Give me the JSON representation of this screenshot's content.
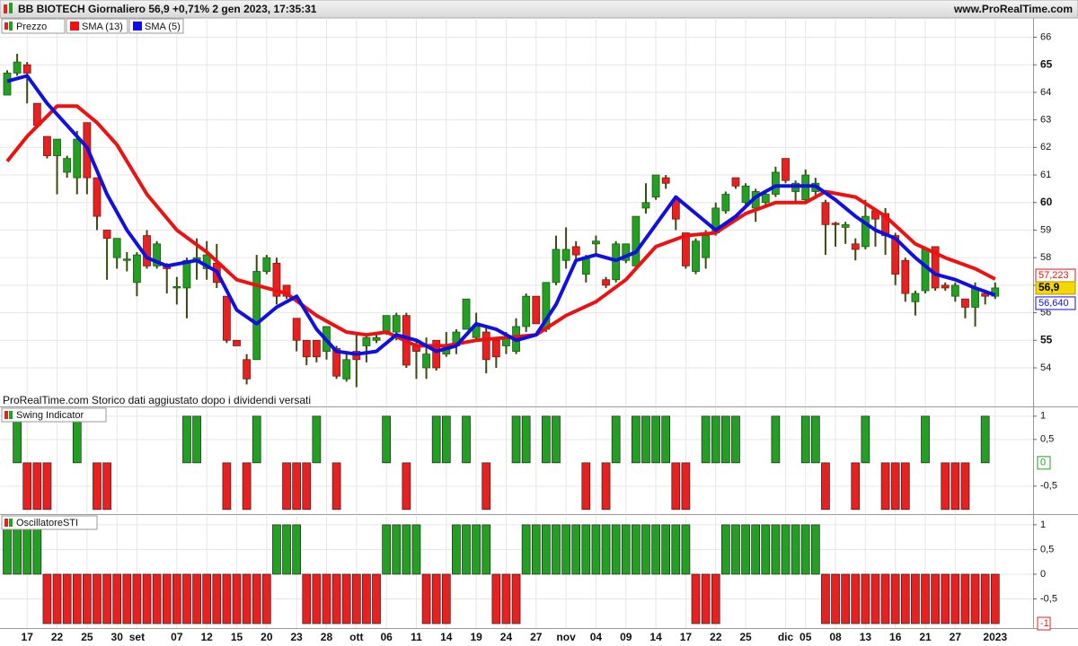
{
  "header": {
    "title": "BB BIOTECH Giornaliero 56,9 +0,71% 2 gen 2023, 17:35:31",
    "site": "www.ProRealTime.com"
  },
  "chart_data": [
    {
      "type": "candlestick",
      "title": "Prezzo",
      "up_color": "#23a023",
      "down_color": "#e82020",
      "note": "ProRealTime.com Storico dati aggiustato dopo i dividendi versati",
      "last_label": "56,9",
      "ylim": [
        52.6,
        66.7
      ],
      "yticks": [
        54,
        55,
        56,
        57,
        58,
        59,
        60,
        61,
        62,
        63,
        64,
        65,
        66
      ],
      "grid": true,
      "candles": [
        [
          63.9,
          64.8,
          63.9,
          64.7
        ],
        [
          64.7,
          65.4,
          64.6,
          65.1
        ],
        [
          65.0,
          65.1,
          63.6,
          64.7
        ],
        [
          63.6,
          63.6,
          62.8,
          62.8
        ],
        [
          62.4,
          62.4,
          61.6,
          61.7
        ],
        [
          61.7,
          62.3,
          60.3,
          62.3
        ],
        [
          61.1,
          61.7,
          60.9,
          61.6
        ],
        [
          60.9,
          62.6,
          60.3,
          62.3
        ],
        [
          62.9,
          62.9,
          60.3,
          60.9
        ],
        [
          60.9,
          60.9,
          59.0,
          59.5
        ],
        [
          59.0,
          59.0,
          57.2,
          58.7
        ],
        [
          58.0,
          58.7,
          57.6,
          58.7
        ],
        [
          57.9,
          58.2,
          57.5,
          57.95
        ],
        [
          57.1,
          58.2,
          56.6,
          58.1
        ],
        [
          58.8,
          59.0,
          57.6,
          57.7
        ],
        [
          57.7,
          58.6,
          57.6,
          58.5
        ],
        [
          57.7,
          57.8,
          56.7,
          57.6
        ],
        [
          56.9,
          57.3,
          56.3,
          56.95
        ],
        [
          56.9,
          58.0,
          55.8,
          57.9
        ],
        [
          57.9,
          58.7,
          57.2,
          58.0
        ],
        [
          57.6,
          58.6,
          57.2,
          58.1
        ],
        [
          57.8,
          58.5,
          56.9,
          57.1
        ],
        [
          56.6,
          56.6,
          54.9,
          55.0
        ],
        [
          55.0,
          55.0,
          54.8,
          54.8
        ],
        [
          54.3,
          54.5,
          53.4,
          53.6
        ],
        [
          54.3,
          58.1,
          54.3,
          57.5
        ],
        [
          57.5,
          58.1,
          57.4,
          58.0
        ],
        [
          57.8,
          58.0,
          56.3,
          56.6
        ],
        [
          57.0,
          57.0,
          56.5,
          56.6
        ],
        [
          55.8,
          55.8,
          54.6,
          55.0
        ],
        [
          55.0,
          55.0,
          54.1,
          54.4
        ],
        [
          55.0,
          55.0,
          54.2,
          54.4
        ],
        [
          54.6,
          55.5,
          54.3,
          55.5
        ],
        [
          54.7,
          54.8,
          53.6,
          53.7
        ],
        [
          53.6,
          54.6,
          53.5,
          54.3
        ],
        [
          54.6,
          55.2,
          53.3,
          54.3
        ],
        [
          54.8,
          55.2,
          54.2,
          55.1
        ],
        [
          55.0,
          55.3,
          54.9,
          55.1
        ],
        [
          55.3,
          55.9,
          55.2,
          55.9
        ],
        [
          55.3,
          56.0,
          55.0,
          55.9
        ],
        [
          55.9,
          56.0,
          54.0,
          54.1
        ],
        [
          54.8,
          55.0,
          53.6,
          54.6
        ],
        [
          54.0,
          55.1,
          53.6,
          54.5
        ],
        [
          55.0,
          55.0,
          53.9,
          54.0
        ],
        [
          54.5,
          55.3,
          54.4,
          54.7
        ],
        [
          54.8,
          55.4,
          54.5,
          55.3
        ],
        [
          55.4,
          56.5,
          55.4,
          56.5
        ],
        [
          55.1,
          56.0,
          55.0,
          55.5
        ],
        [
          55.3,
          55.5,
          53.8,
          54.3
        ],
        [
          55.0,
          55.0,
          54.0,
          54.4
        ],
        [
          54.8,
          55.3,
          54.5,
          55.1
        ],
        [
          54.6,
          55.8,
          54.5,
          55.5
        ],
        [
          55.5,
          56.7,
          55.3,
          56.6
        ],
        [
          56.6,
          56.6,
          55.6,
          55.6
        ],
        [
          55.4,
          57.1,
          55.3,
          57.1
        ],
        [
          57.1,
          58.8,
          57.0,
          58.3
        ],
        [
          57.9,
          59.1,
          57.6,
          58.3
        ],
        [
          58.4,
          58.6,
          57.9,
          58.1
        ],
        [
          57.4,
          58.1,
          57.1,
          58.0
        ],
        [
          58.5,
          58.8,
          58.1,
          58.6
        ],
        [
          57.2,
          57.3,
          56.9,
          57.0
        ],
        [
          57.2,
          58.6,
          57.1,
          58.5
        ],
        [
          57.9,
          58.5,
          57.8,
          58.5
        ],
        [
          57.7,
          59.5,
          57.6,
          59.5
        ],
        [
          59.8,
          60.7,
          59.6,
          60.0
        ],
        [
          60.2,
          61.0,
          60.1,
          61.0
        ],
        [
          60.9,
          61.0,
          60.5,
          60.7
        ],
        [
          60.1,
          60.2,
          59.0,
          59.4
        ],
        [
          58.9,
          58.9,
          57.6,
          57.7
        ],
        [
          57.5,
          58.7,
          57.4,
          58.6
        ],
        [
          58.0,
          59.0,
          57.6,
          58.8
        ],
        [
          58.9,
          60.0,
          58.8,
          59.8
        ],
        [
          59.7,
          60.4,
          59.6,
          60.3
        ],
        [
          60.9,
          60.9,
          60.5,
          60.6
        ],
        [
          60.0,
          60.7,
          59.9,
          60.6
        ],
        [
          59.8,
          60.5,
          59.3,
          60.4
        ],
        [
          60.0,
          60.4,
          59.9,
          60.3
        ],
        [
          60.3,
          61.3,
          60.2,
          61.1
        ],
        [
          61.6,
          61.6,
          60.7,
          60.8
        ],
        [
          60.4,
          60.8,
          60.0,
          60.7
        ],
        [
          60.1,
          61.2,
          60.0,
          61.0
        ],
        [
          60.4,
          60.9,
          60.2,
          60.7
        ],
        [
          60.0,
          60.1,
          58.1,
          59.2
        ],
        [
          59.25,
          59.3,
          58.4,
          59.2
        ],
        [
          59.1,
          59.3,
          58.5,
          59.2
        ],
        [
          58.5,
          58.7,
          57.9,
          58.3
        ],
        [
          58.4,
          60.1,
          58.3,
          59.5
        ],
        [
          59.7,
          59.7,
          58.4,
          59.4
        ],
        [
          59.6,
          59.8,
          58.1,
          58.8
        ],
        [
          58.8,
          58.9,
          57.0,
          57.4
        ],
        [
          57.9,
          58.0,
          56.4,
          56.7
        ],
        [
          56.4,
          56.8,
          55.9,
          56.7
        ],
        [
          56.8,
          58.4,
          56.7,
          58.3
        ],
        [
          58.4,
          58.4,
          56.8,
          56.9
        ],
        [
          57.0,
          57.1,
          56.8,
          56.9
        ],
        [
          56.6,
          57.1,
          56.4,
          57.0
        ],
        [
          56.5,
          56.5,
          55.8,
          56.2
        ],
        [
          56.2,
          57.1,
          55.5,
          56.9
        ],
        [
          56.7,
          56.8,
          56.3,
          56.6
        ],
        [
          56.6,
          57.1,
          56.5,
          56.9
        ]
      ],
      "series": [
        {
          "name": "SMA (13)",
          "color": "#ee1111",
          "last_label": "57,223",
          "x": [
            0,
            2,
            5,
            7,
            9,
            11,
            14,
            17,
            20,
            23,
            25,
            28,
            31,
            34,
            36,
            38,
            41,
            44,
            47,
            50,
            53,
            56,
            59,
            62,
            65,
            68,
            71,
            74,
            77,
            80,
            82,
            85,
            88,
            91,
            94,
            97,
            99
          ],
          "values": [
            61.5,
            62.4,
            63.5,
            63.5,
            62.9,
            62.1,
            60.3,
            59.0,
            58.2,
            57.2,
            57.0,
            56.7,
            55.9,
            55.3,
            55.2,
            55.3,
            54.8,
            54.8,
            55.0,
            55.1,
            55.2,
            55.9,
            56.4,
            57.2,
            58.4,
            58.8,
            58.9,
            59.6,
            60.0,
            60.0,
            60.4,
            60.2,
            59.5,
            58.5,
            58.0,
            57.6,
            57.223
          ]
        },
        {
          "name": "SMA (5)",
          "color": "#1010e0",
          "last_label": "56,640",
          "x": [
            0,
            2,
            4,
            8,
            10,
            12,
            14,
            16,
            19,
            21,
            23,
            25,
            27,
            29,
            31,
            33,
            35,
            37,
            39,
            41,
            43,
            45,
            47,
            49,
            51,
            53,
            55,
            57,
            59,
            61,
            63,
            65,
            67,
            69,
            71,
            73,
            75,
            77,
            79,
            81,
            83,
            85,
            87,
            89,
            91,
            93,
            95,
            97,
            99
          ],
          "values": [
            64.4,
            64.6,
            63.6,
            62.0,
            60.3,
            59.0,
            58.0,
            57.7,
            57.9,
            57.5,
            56.1,
            55.6,
            56.2,
            56.6,
            55.4,
            54.6,
            54.5,
            54.6,
            55.2,
            55.0,
            54.6,
            54.8,
            55.6,
            55.4,
            55.0,
            55.2,
            56.3,
            57.9,
            58.1,
            57.9,
            58.2,
            59.2,
            60.2,
            59.6,
            59.0,
            59.5,
            60.2,
            60.6,
            60.6,
            60.6,
            60.1,
            59.5,
            59.0,
            58.7,
            58.0,
            57.4,
            57.2,
            56.9,
            56.64
          ]
        }
      ]
    },
    {
      "type": "bar",
      "title": "Swing Indicator",
      "up_color": "#23a023",
      "down_color": "#e82020",
      "ylim": [
        -1.08,
        1.17
      ],
      "yticks": [
        1,
        {
          "value": 0.5,
          "label": "0,5"
        },
        {
          "value": -0.5,
          "label": "-0,5"
        }
      ],
      "values": [
        0,
        1,
        -1,
        -1,
        -1,
        0,
        0,
        1,
        0,
        -1,
        -1,
        0,
        0,
        0,
        0,
        0,
        0,
        0,
        1,
        1,
        0,
        0,
        -1,
        0,
        -1,
        1,
        0,
        0,
        -1,
        -1,
        -1,
        1,
        0,
        -1,
        0,
        0,
        0,
        0,
        1,
        0,
        -1,
        0,
        0,
        1,
        1,
        0,
        1,
        0,
        -1,
        0,
        0,
        1,
        1,
        0,
        1,
        1,
        0,
        0,
        -1,
        0,
        -1,
        1,
        0,
        1,
        1,
        1,
        1,
        -1,
        -1,
        0,
        1,
        1,
        1,
        1,
        0,
        0,
        0,
        1,
        0,
        0,
        1,
        1,
        -1,
        0,
        0,
        -1,
        1,
        0,
        -1,
        -1,
        -1,
        0,
        1,
        0,
        -1,
        -1,
        -1,
        0,
        1,
        0
      ]
    },
    {
      "type": "bar",
      "title": "OscillatoreSTI",
      "up_color": "#23a023",
      "down_color": "#e82020",
      "ylim": [
        -1.09,
        1.18
      ],
      "yticks": [
        1,
        {
          "value": 0.5,
          "label": "0,5"
        },
        0,
        {
          "value": -0.5,
          "label": "-0,5"
        }
      ],
      "values": [
        1,
        1,
        1,
        1,
        -1,
        -1,
        -1,
        -1,
        -1,
        -1,
        -1,
        -1,
        -1,
        -1,
        -1,
        -1,
        -1,
        -1,
        -1,
        -1,
        -1,
        -1,
        -1,
        -1,
        -1,
        -1,
        -1,
        1,
        1,
        1,
        -1,
        -1,
        -1,
        -1,
        -1,
        -1,
        -1,
        -1,
        1,
        1,
        1,
        1,
        -1,
        -1,
        -1,
        1,
        1,
        1,
        1,
        -1,
        -1,
        -1,
        1,
        1,
        1,
        1,
        1,
        1,
        1,
        1,
        1,
        1,
        1,
        1,
        1,
        1,
        1,
        1,
        1,
        -1,
        -1,
        -1,
        1,
        1,
        1,
        1,
        1,
        1,
        1,
        1,
        1,
        1,
        -1,
        -1,
        -1,
        -1,
        -1,
        -1,
        -1,
        -1,
        -1,
        -1,
        -1,
        -1,
        -1,
        -1,
        -1,
        -1,
        -1,
        -1
      ],
      "xlim": [
        -0.72,
        102.8
      ],
      "xticks": [
        {
          "value": 2,
          "label": "17"
        },
        {
          "value": 5,
          "label": "22"
        },
        {
          "value": 8,
          "label": "25"
        },
        {
          "value": 11,
          "label": "30"
        },
        {
          "value": 13,
          "label": "set"
        },
        {
          "value": 17,
          "label": "07"
        },
        {
          "value": 20,
          "label": "12"
        },
        {
          "value": 23,
          "label": "15"
        },
        {
          "value": 26,
          "label": "20"
        },
        {
          "value": 29,
          "label": "23"
        },
        {
          "value": 32,
          "label": "28"
        },
        {
          "value": 35,
          "label": "ott"
        },
        {
          "value": 38,
          "label": "06"
        },
        {
          "value": 41,
          "label": "11"
        },
        {
          "value": 44,
          "label": "14"
        },
        {
          "value": 47,
          "label": "19"
        },
        {
          "value": 50,
          "label": "24"
        },
        {
          "value": 53,
          "label": "27"
        },
        {
          "value": 56,
          "label": "nov"
        },
        {
          "value": 59,
          "label": "04"
        },
        {
          "value": 62,
          "label": "09"
        },
        {
          "value": 65,
          "label": "14"
        },
        {
          "value": 68,
          "label": "17"
        },
        {
          "value": 71,
          "label": "22"
        },
        {
          "value": 74,
          "label": "25"
        },
        {
          "value": 78,
          "label": "dic"
        },
        {
          "value": 80,
          "label": "05"
        },
        {
          "value": 83,
          "label": "08"
        },
        {
          "value": 86,
          "label": "13"
        },
        {
          "value": 89,
          "label": "16"
        },
        {
          "value": 92,
          "label": "21"
        },
        {
          "value": 95,
          "label": "27"
        },
        {
          "value": 99,
          "label": "2023"
        }
      ]
    }
  ]
}
